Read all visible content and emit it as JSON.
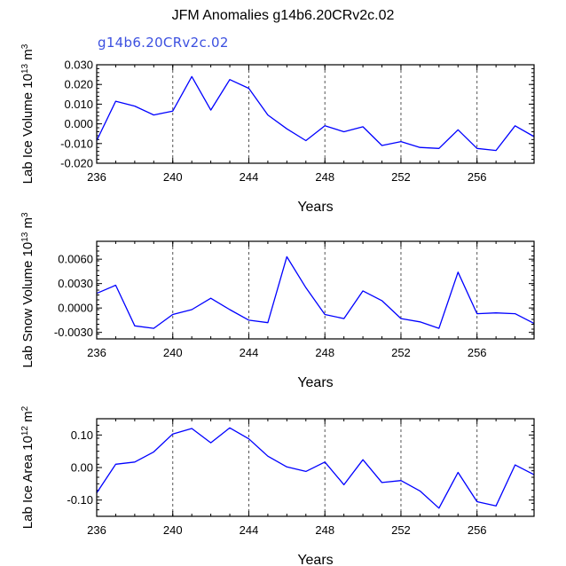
{
  "title": "JFM Anomalies g14b6.20CRv2c.02",
  "subtitle": "g14b6.20CRv2c.02",
  "colors": {
    "series": "#0000ff",
    "axis": "#000000",
    "grid": "#555555"
  },
  "chart_data": [
    {
      "type": "line",
      "ylabel": "Lab Ice Volume 10",
      "ylabel_exp": "13",
      "ylabel_unit": " m",
      "ylabel_unit_exp": "3",
      "xlabel": "Years",
      "xlim": [
        236,
        259
      ],
      "ylim": [
        -0.02,
        0.03
      ],
      "xticks": [
        236,
        240,
        244,
        248,
        252,
        256
      ],
      "yticks": [
        -0.02,
        -0.01,
        0.0,
        0.01,
        0.02,
        0.03
      ],
      "ytick_labels": [
        "-0.020",
        "-0.010",
        "0.000",
        "0.010",
        "0.020",
        "0.030"
      ],
      "grid_x": [
        240,
        244,
        248,
        252,
        256
      ],
      "x": [
        236,
        237,
        238,
        239,
        240,
        241,
        242,
        243,
        244,
        245,
        246,
        247,
        248,
        249,
        250,
        251,
        252,
        253,
        254,
        255,
        256,
        257,
        258,
        259
      ],
      "values": [
        -0.0085,
        0.0115,
        0.009,
        0.0045,
        0.0065,
        0.024,
        0.007,
        0.0225,
        0.018,
        0.0045,
        -0.0025,
        -0.0085,
        -0.001,
        -0.004,
        -0.0015,
        -0.011,
        -0.009,
        -0.012,
        -0.0125,
        -0.003,
        -0.0125,
        -0.0135,
        -0.001,
        -0.0065
      ]
    },
    {
      "type": "line",
      "ylabel": "Lab Snow Volume 10",
      "ylabel_exp": "13",
      "ylabel_unit": " m",
      "ylabel_unit_exp": "3",
      "xlabel": "Years",
      "xlim": [
        236,
        259
      ],
      "ylim": [
        -0.0038,
        0.0082
      ],
      "xticks": [
        236,
        240,
        244,
        248,
        252,
        256
      ],
      "yticks": [
        -0.003,
        0.0,
        0.003,
        0.006
      ],
      "ytick_labels": [
        "-0.0030",
        "0.0000",
        "0.0030",
        "0.0060"
      ],
      "grid_x": [
        240,
        244,
        248,
        252,
        256
      ],
      "x": [
        236,
        237,
        238,
        239,
        240,
        241,
        242,
        243,
        244,
        245,
        246,
        247,
        248,
        249,
        250,
        251,
        252,
        253,
        254,
        255,
        256,
        257,
        258,
        259
      ],
      "values": [
        0.0018,
        0.0028,
        -0.0022,
        -0.0025,
        -0.0008,
        -0.0002,
        0.0012,
        -0.0002,
        -0.0015,
        -0.0018,
        0.0063,
        0.0025,
        -0.0008,
        -0.0013,
        0.0021,
        0.0009,
        -0.0013,
        -0.0017,
        -0.0025,
        0.0044,
        -0.0007,
        -0.0006,
        -0.0007,
        -0.0019
      ]
    },
    {
      "type": "line",
      "ylabel": "Lab Ice Area 10",
      "ylabel_exp": "12",
      "ylabel_unit": " m",
      "ylabel_unit_exp": "2",
      "xlabel": "Years",
      "xlim": [
        236,
        259
      ],
      "ylim": [
        -0.15,
        0.15
      ],
      "xticks": [
        236,
        240,
        244,
        248,
        252,
        256
      ],
      "yticks": [
        -0.1,
        0.0,
        0.1
      ],
      "ytick_labels": [
        "-0.10",
        "0.00",
        "0.10"
      ],
      "grid_x": [
        240,
        244,
        248,
        252,
        256
      ],
      "x": [
        236,
        237,
        238,
        239,
        240,
        241,
        242,
        243,
        244,
        245,
        246,
        247,
        248,
        249,
        250,
        251,
        252,
        253,
        254,
        255,
        256,
        257,
        258,
        259
      ],
      "values": [
        -0.078,
        0.01,
        0.017,
        0.048,
        0.103,
        0.12,
        0.076,
        0.122,
        0.088,
        0.035,
        0.002,
        -0.012,
        0.017,
        -0.053,
        0.024,
        -0.046,
        -0.04,
        -0.072,
        -0.125,
        -0.015,
        -0.105,
        -0.118,
        0.008,
        -0.022
      ]
    }
  ]
}
